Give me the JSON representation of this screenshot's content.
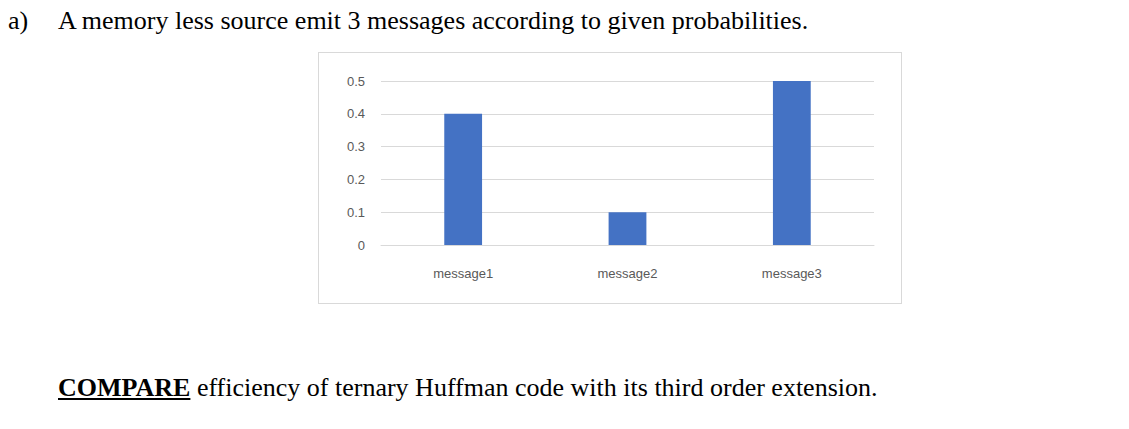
{
  "document": {
    "item": "a)",
    "question": "A memory less source emit 3 messages according to given probabilities.",
    "task": {
      "keyword": "COMPARE",
      "text": "efficiency of ternary Huffman code with its third order extension."
    }
  },
  "chart_data": {
    "type": "bar",
    "categories": [
      "message1",
      "message2",
      "message3"
    ],
    "values": [
      0.4,
      0.1,
      0.5
    ],
    "color": "#4472c4",
    "ylim": [
      0,
      0.5
    ],
    "yticks": [
      0,
      0.1,
      0.2,
      0.3,
      0.4,
      0.5
    ],
    "grid": true
  }
}
